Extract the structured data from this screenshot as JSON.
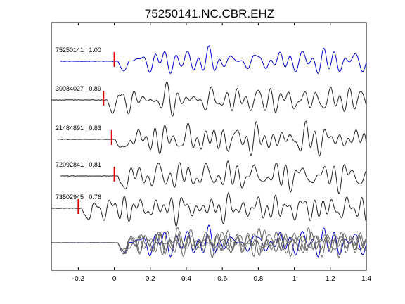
{
  "chart_data": {
    "type": "line",
    "title": "75250141.NC.CBR.EHZ",
    "xlabel": "",
    "ylabel": "",
    "xlim": [
      -0.35,
      1.4
    ],
    "x_ticks": [
      -0.2,
      0,
      0.2,
      0.4,
      0.6,
      0.8,
      1,
      1.2,
      1.4
    ],
    "x_tick_labels": [
      "-0.2",
      "0",
      "0.2",
      "0.4",
      "0.6",
      "0.8",
      "1",
      "1.2",
      "1.4"
    ],
    "grid": false,
    "legend": "none",
    "series": [
      {
        "label": "75250141 | 1.00",
        "color": "#0000cc",
        "pick_time": 0.0
      },
      {
        "label": "30084027 | 0.89",
        "color": "#222222",
        "pick_time": -0.06
      },
      {
        "label": "21484891 | 0.83",
        "color": "#222222",
        "pick_time": -0.015
      },
      {
        "label": "72092841 | 0.81",
        "color": "#222222",
        "pick_time": 0.0
      },
      {
        "label": "73502945 | 0.76",
        "color": "#222222",
        "pick_time": -0.2
      }
    ],
    "stack": {
      "series_colors": [
        "#0000cc",
        "#666666",
        "#666666",
        "#666666",
        "#666666"
      ]
    },
    "pick_color": "#dd0000"
  }
}
